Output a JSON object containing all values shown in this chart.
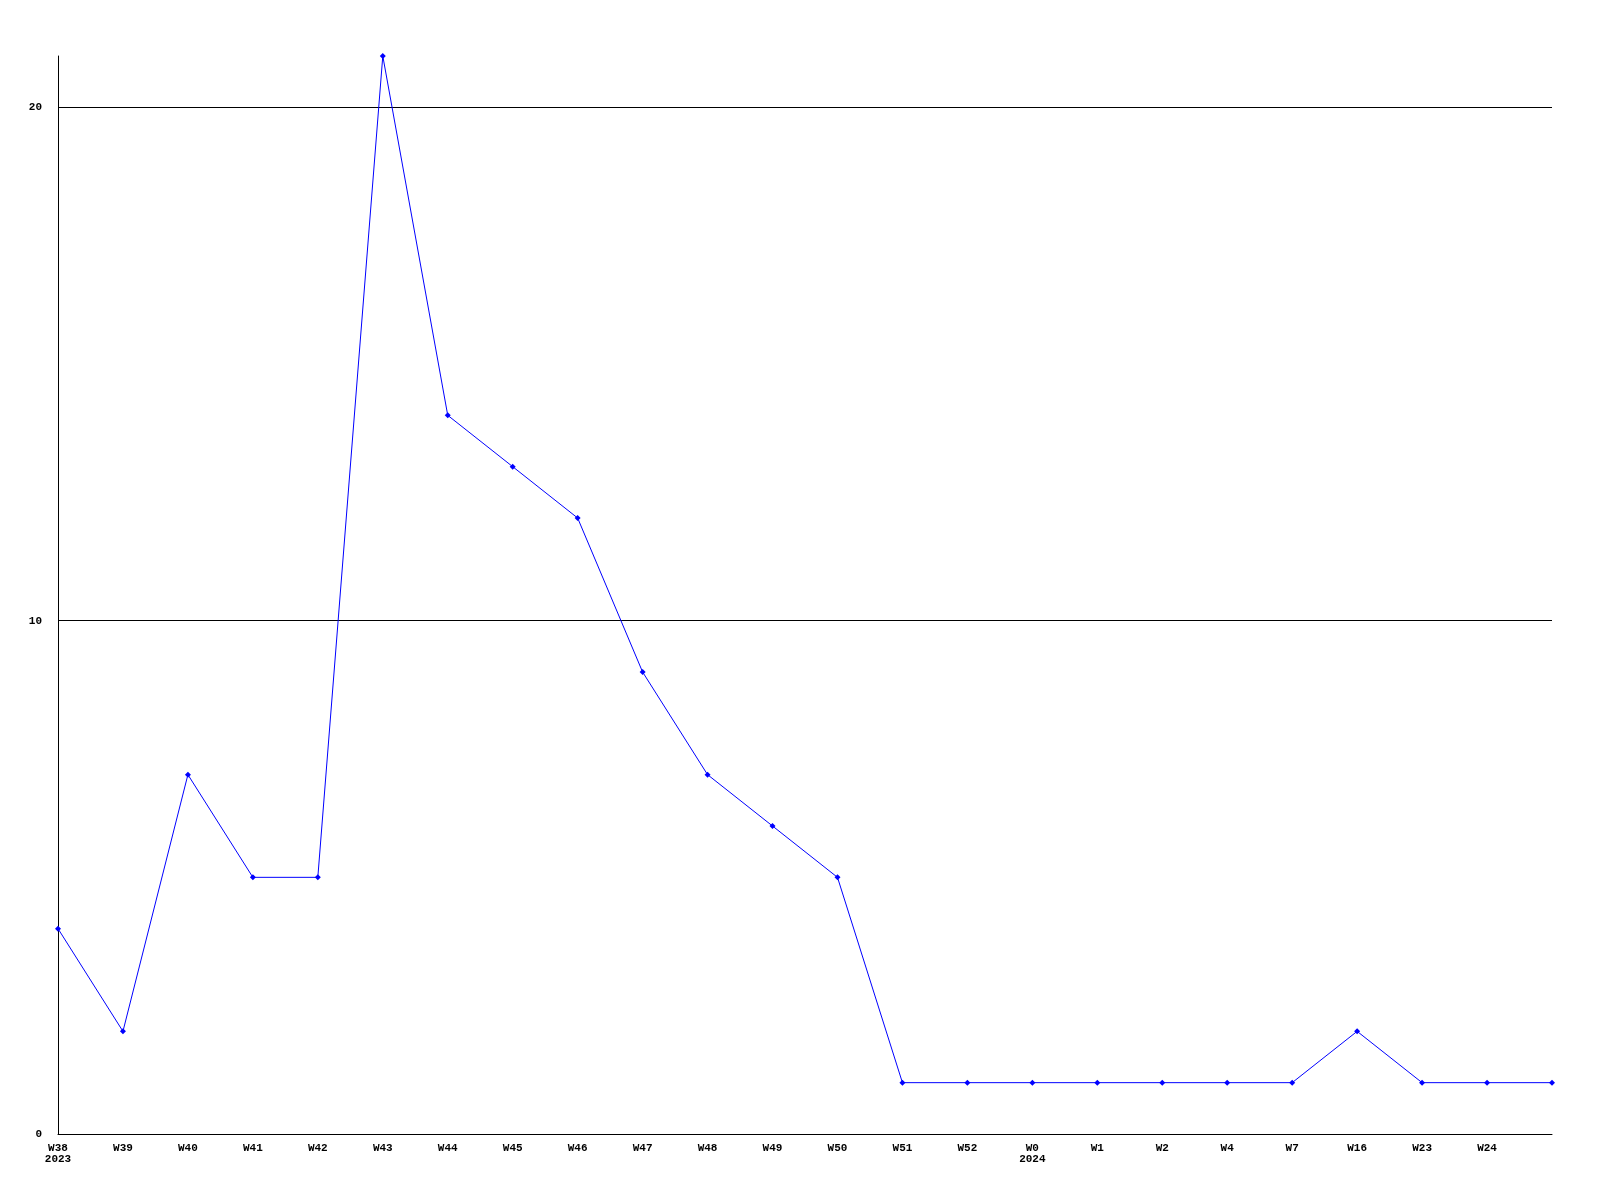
{
  "chart_data": {
    "type": "line",
    "categories": [
      "W38\n2023",
      "W39",
      "W40",
      "W41",
      "W42",
      "W43",
      "W44",
      "W45",
      "W46",
      "W47",
      "W48",
      "W49",
      "W50",
      "W51",
      "W52",
      "W0\n2024",
      "W1",
      "W2",
      "W4",
      "W7",
      "W16",
      "W23",
      "W24",
      null
    ],
    "series": [
      {
        "color": "#0000ff",
        "values": [
          4,
          2,
          7,
          5,
          5,
          21,
          14,
          13,
          12,
          9,
          7,
          6,
          5,
          1,
          1,
          1,
          1,
          1,
          1,
          1,
          2,
          1,
          1,
          1
        ]
      }
    ],
    "ylim": [
      0,
      21
    ],
    "yticks": [
      0,
      10,
      20
    ],
    "grid": "y",
    "marker": "diamond",
    "line_style": "solid"
  }
}
